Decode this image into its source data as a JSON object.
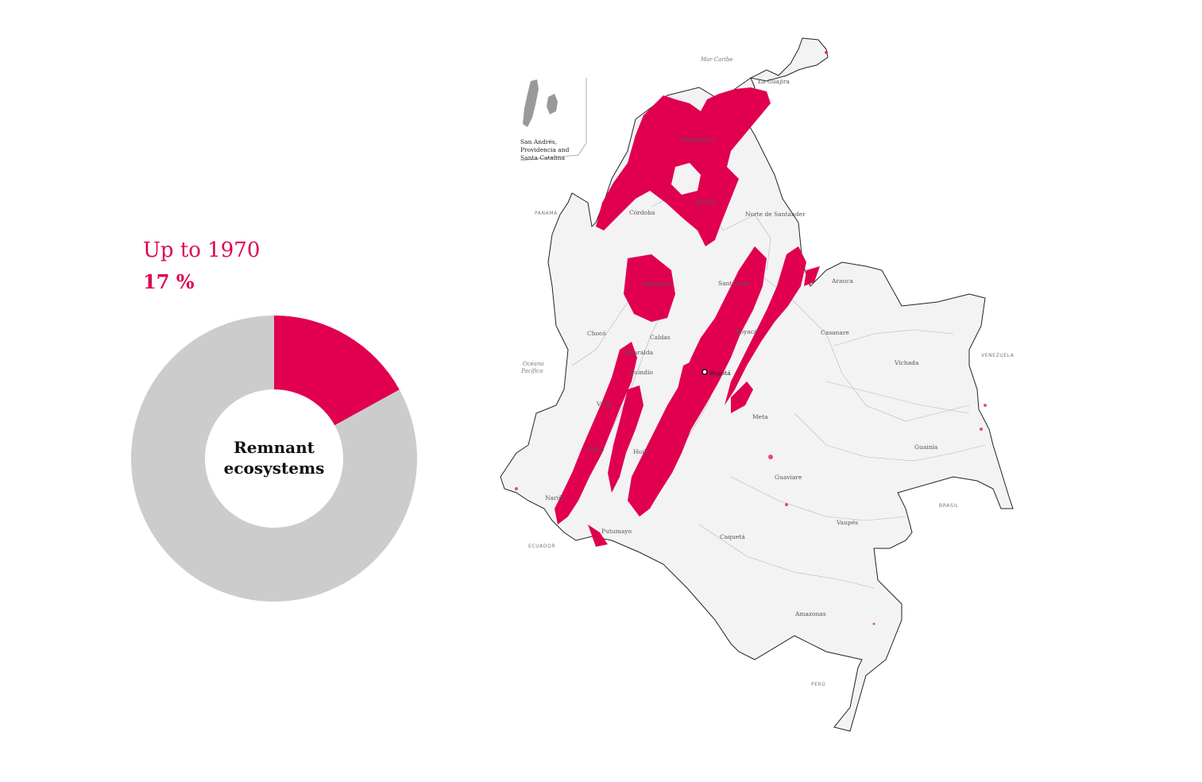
{
  "stat": {
    "period": "Up to 1970",
    "value_label": "17 %"
  },
  "donut": {
    "center_line1": "Remnant",
    "center_line2": "ecosystems",
    "percent": 17,
    "highlight_color": "#e0004f",
    "rest_color": "#cccccc"
  },
  "map": {
    "inset_label_line1": "San Andrés,",
    "inset_label_line2": "Providencia and",
    "inset_label_line3": "Santa Catalina",
    "sea_caribbean": "Mar Caribe",
    "ocean_line1": "Océano",
    "ocean_line2": "Pacífico",
    "country_panama": "PANAMÁ",
    "country_venezuela": "VENEZUELA",
    "country_ecuador": "ECUADOR",
    "country_peru": "PERÚ",
    "country_brasil": "BRASIL",
    "dept_laguajira": "La Guajira",
    "dept_bolivar": "Bolívar",
    "dept_arauca": "Arauca",
    "dept_santander": "Santander",
    "dept_casanare": "Casanare",
    "dept_choco": "Chocó",
    "dept_vichada": "Vichada",
    "dept_meta": "Meta",
    "dept_guainia": "Guainía",
    "dept_guaviare": "Guaviare",
    "dept_vaupes": "Vaupés",
    "dept_caqueta": "Caquetá",
    "dept_putumayo": "Putumayo",
    "dept_narino": "Nariño",
    "dept_amazonas": "Amazonas",
    "dept_cauca": "Cauca",
    "dept_valle": "Valle",
    "dept_risaralda": "Risaralda",
    "dept_caldas": "Caldas",
    "dept_quindio": "Quindío",
    "dept_huila": "Huila",
    "dept_antioquia": "Antioquia",
    "dept_cordoba": "Córdoba",
    "dept_magdalena": "Magdalena",
    "dept_nortesantander": "Norte de Santander",
    "dept_boyaca": "Boyacá",
    "city_bogota": "Bogotá",
    "highlight_color": "#e0004f"
  }
}
